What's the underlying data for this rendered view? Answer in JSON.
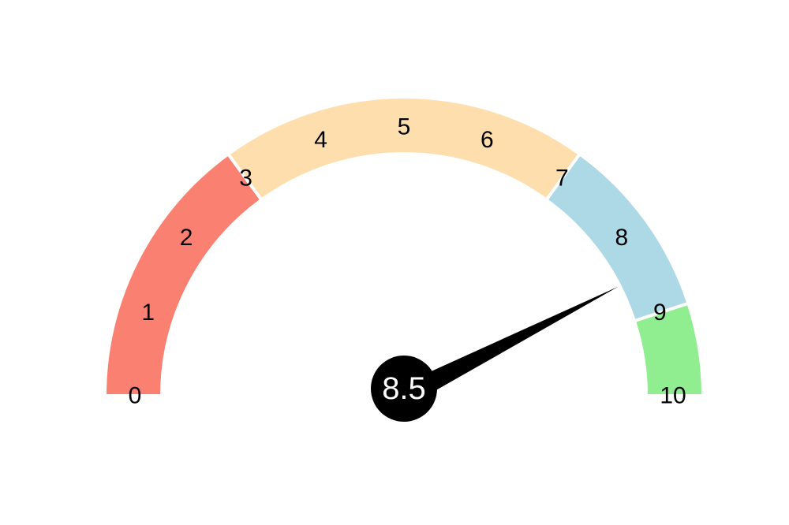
{
  "chart_data": {
    "type": "gauge",
    "title": "",
    "min": 0,
    "max": 10,
    "value": 8.5,
    "value_label": "8.5",
    "ticks": [
      0,
      1,
      2,
      3,
      4,
      5,
      6,
      7,
      8,
      9,
      10
    ],
    "tick_labels": [
      "0",
      "1",
      "2",
      "3",
      "4",
      "5",
      "6",
      "7",
      "8",
      "9",
      "10"
    ],
    "bands": [
      {
        "from": 0,
        "to": 3,
        "color": "#fa8072"
      },
      {
        "from": 3,
        "to": 7,
        "color": "#ffdead"
      },
      {
        "from": 7,
        "to": 9,
        "color": "#add8e6"
      },
      {
        "from": 9,
        "to": 10,
        "color": "#90ee90"
      }
    ],
    "needle_color": "#000000"
  }
}
